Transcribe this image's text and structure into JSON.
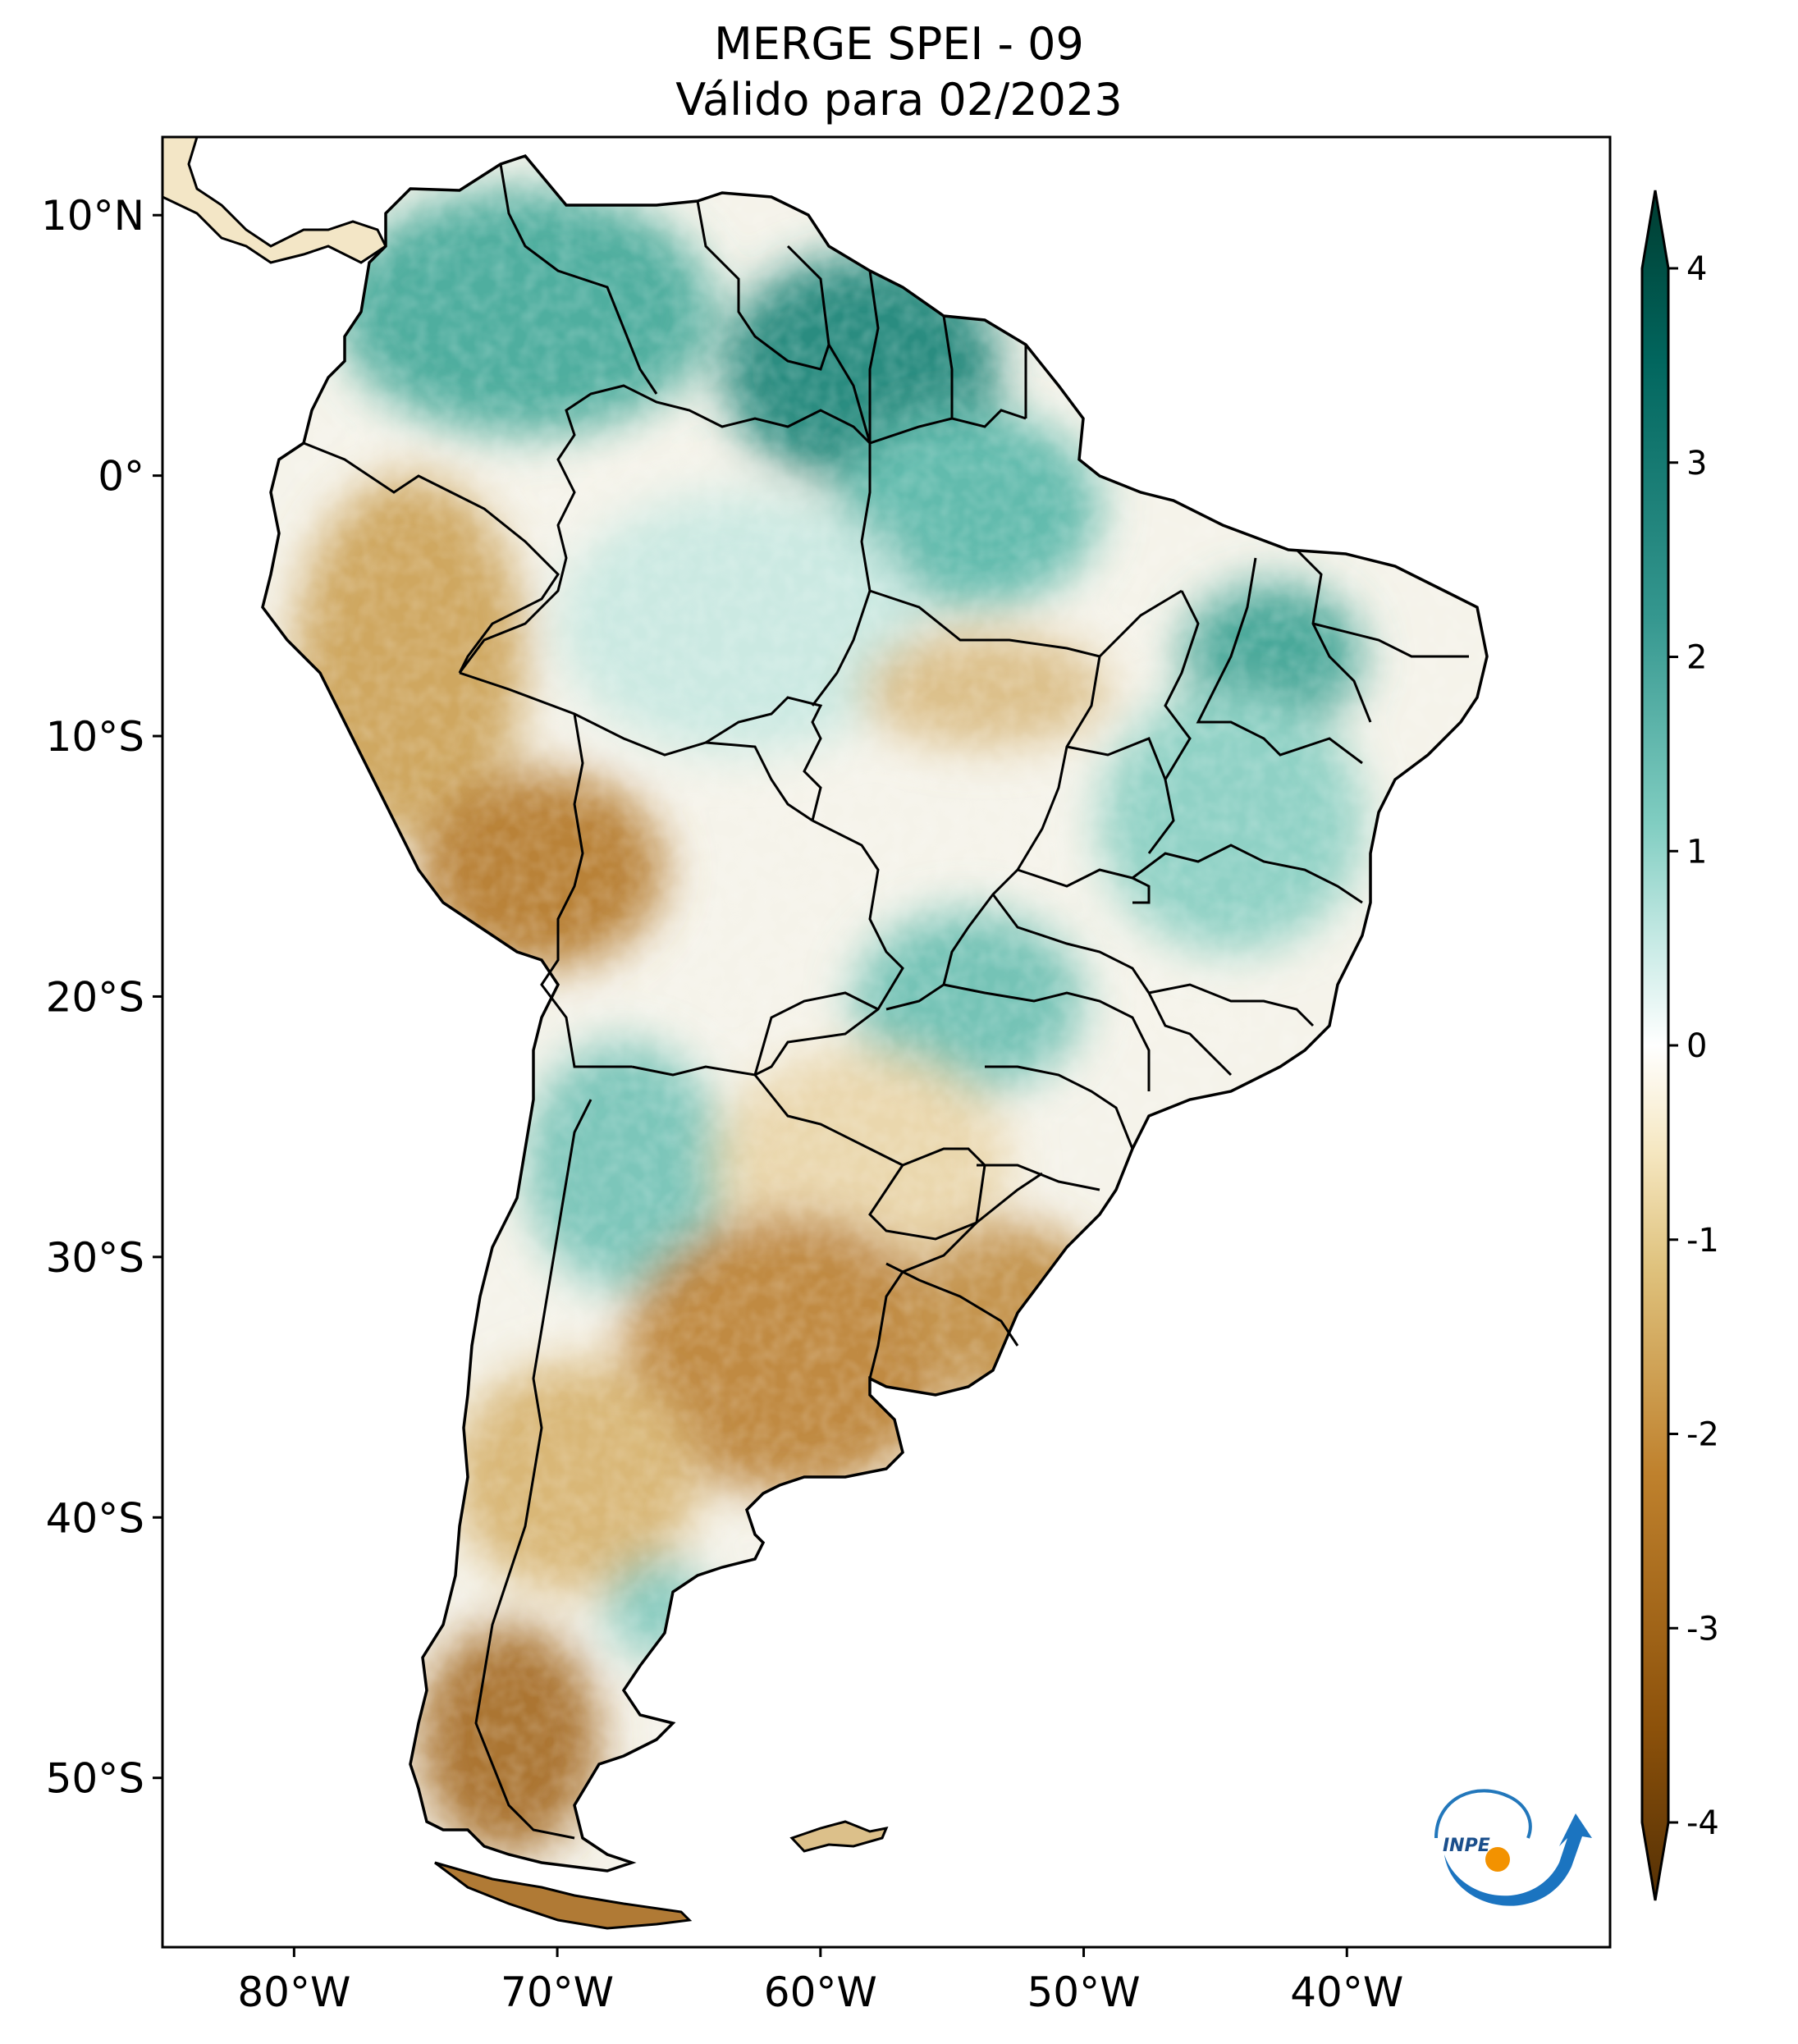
{
  "title_line1": "MERGE   SPEI - 09",
  "title_line2": "Válido para 02/2023",
  "lat_ticks": [
    {
      "lat": 10,
      "label": "10°N"
    },
    {
      "lat": 0,
      "label": "0°"
    },
    {
      "lat": -10,
      "label": "10°S"
    },
    {
      "lat": -20,
      "label": "20°S"
    },
    {
      "lat": -30,
      "label": "30°S"
    },
    {
      "lat": -40,
      "label": "40°S"
    },
    {
      "lat": -50,
      "label": "50°S"
    }
  ],
  "lon_ticks": [
    {
      "lon": -80,
      "label": "80°W"
    },
    {
      "lon": -70,
      "label": "70°W"
    },
    {
      "lon": -60,
      "label": "60°W"
    },
    {
      "lon": -50,
      "label": "50°W"
    },
    {
      "lon": -40,
      "label": "40°W"
    }
  ],
  "map_extent": {
    "lon_min": -85,
    "lon_max": -30,
    "lat_min": -56.5,
    "lat_max": 13
  },
  "colorbar": {
    "min": -4,
    "max": 4,
    "extend": "both",
    "ticks": [
      {
        "value": 4,
        "label": "4"
      },
      {
        "value": 3,
        "label": "3"
      },
      {
        "value": 2,
        "label": "2"
      },
      {
        "value": 1,
        "label": "1"
      },
      {
        "value": 0,
        "label": "0"
      },
      {
        "value": -1,
        "label": "-1"
      },
      {
        "value": -2,
        "label": "-2"
      },
      {
        "value": -3,
        "label": "-3"
      },
      {
        "value": -4,
        "label": "-4"
      }
    ],
    "colors": [
      "#543005",
      "#8c510a",
      "#bf812d",
      "#dfc27d",
      "#f6e8c3",
      "#ffffff",
      "#c7eae5",
      "#80cdc1",
      "#35978f",
      "#01665e",
      "#003c30"
    ]
  },
  "logo_text": "INPE"
}
